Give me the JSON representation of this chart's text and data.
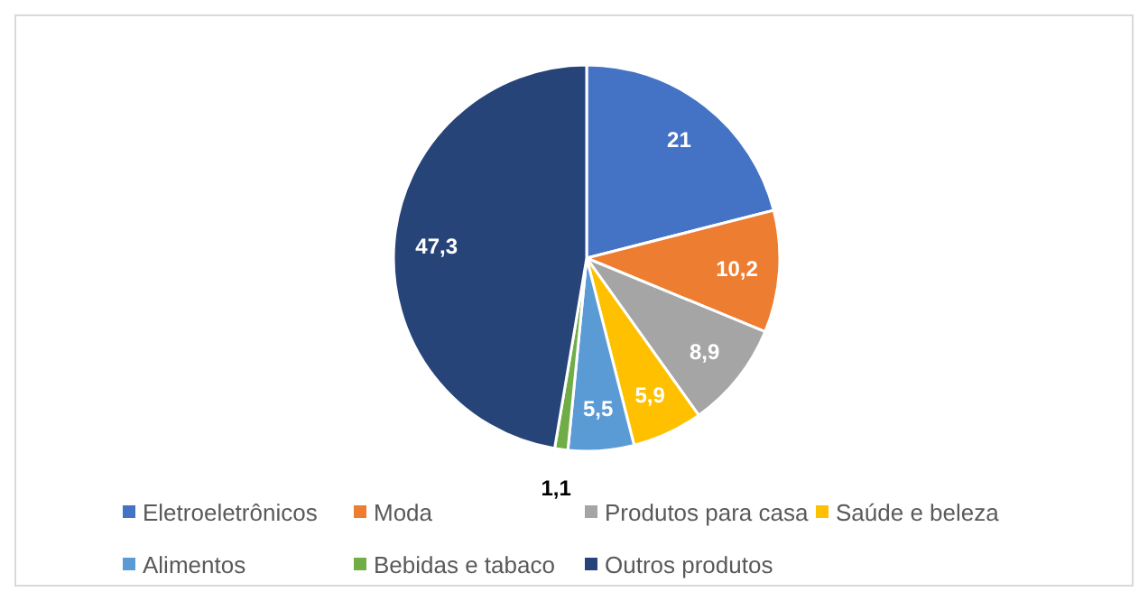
{
  "chart_data": {
    "type": "pie",
    "categories": [
      "Eletroeletrônicos",
      "Moda",
      "Produtos para casa",
      "Saúde e beleza",
      "Alimentos",
      "Bebidas e tabaco",
      "Outros produtos"
    ],
    "values": [
      21,
      10.2,
      8.9,
      5.9,
      5.5,
      1.1,
      47.3
    ],
    "value_labels": [
      "21",
      "10,2",
      "8,9",
      "5,9",
      "5,5",
      "1,1",
      "47,3"
    ],
    "colors": [
      "#4472c4",
      "#ed7d31",
      "#a5a5a5",
      "#ffc000",
      "#5b9bd5",
      "#70ad47",
      "#264478"
    ],
    "legend": "bottom"
  }
}
